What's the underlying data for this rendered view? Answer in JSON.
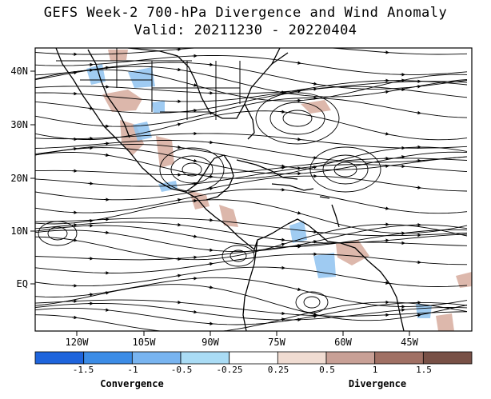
{
  "header": {
    "title": "GEFS Week-2 700-hPa Divergence and Wind Anomaly",
    "valid": "Valid: 20211230 - 20220404"
  },
  "map": {
    "lat_labels": [
      "40N",
      "30N",
      "20N",
      "10N",
      "EQ"
    ],
    "lon_labels": [
      "120W",
      "105W",
      "90W",
      "75W",
      "60W",
      "45W"
    ],
    "colors": {
      "land_outline": "#000000",
      "streamlines": "#000000",
      "convergence": "#8fc3f0",
      "divergence": "#d9b0a3"
    }
  },
  "colorbar": {
    "colors": [
      "#1e64dc",
      "#3c8ce6",
      "#78b4f0",
      "#aadcf5",
      "#ffffff",
      "#f0dcd2",
      "#c8a096",
      "#a07064",
      "#785046"
    ],
    "tick_labels": [
      "-1.5",
      "-1",
      "-0.5",
      "-0.25",
      "0.25",
      "0.5",
      "1",
      "1.5"
    ],
    "left_word": "Convergence",
    "right_word": "Divergence"
  }
}
